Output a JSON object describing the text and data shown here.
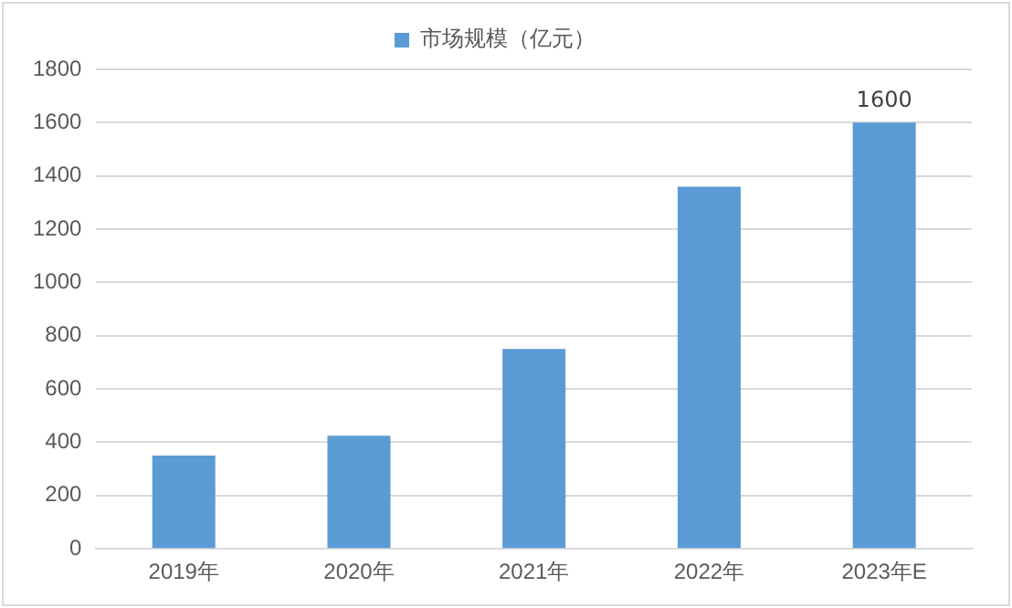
{
  "chart_data": {
    "type": "bar",
    "categories": [
      "2019年",
      "2020年",
      "2021年",
      "2022年",
      "2023年E"
    ],
    "series": [
      {
        "name": "市场规模（亿元）",
        "color": "#5b9bd5",
        "values": [
          350,
          425,
          750,
          1360,
          1600
        ],
        "value_labels": [
          null,
          null,
          null,
          null,
          "1600"
        ]
      }
    ],
    "ylim": [
      0,
      1800
    ],
    "yticks": [
      0,
      200,
      400,
      600,
      800,
      1000,
      1200,
      1400,
      1600,
      1800
    ],
    "grid": "y",
    "legend": "top"
  }
}
